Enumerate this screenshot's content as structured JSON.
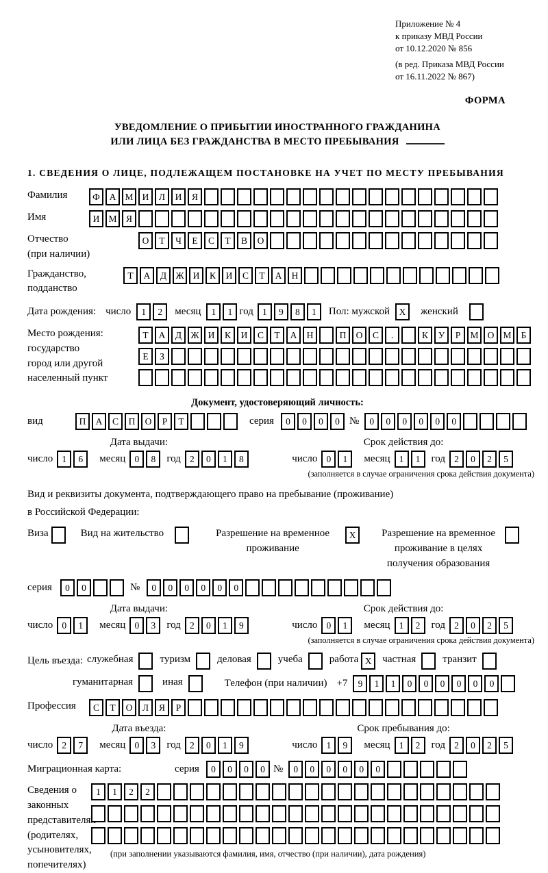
{
  "header": {
    "appendix": [
      "Приложение № 4",
      "к приказу МВД России",
      "от 10.12.2020 № 856"
    ],
    "edition": [
      "(в ред. Приказа МВД России",
      "от 16.11.2022 № 867)"
    ],
    "form_label": "ФОРМА"
  },
  "title": {
    "line1": "УВЕДОМЛЕНИЕ О ПРИБЫТИИ ИНОСТРАННОГО ГРАЖДАНИНА",
    "line2": "ИЛИ ЛИЦА БЕЗ ГРАЖДАНСТВА В МЕСТО ПРЕБЫВАНИЯ"
  },
  "section1_heading": "1. СВЕДЕНИЯ О ЛИЦЕ, ПОДЛЕЖАЩЕМ ПОСТАНОВКЕ НА УЧЕТ ПО МЕСТУ ПРЕБЫВАНИЯ",
  "date_labels": {
    "day": "число",
    "month": "месяц",
    "year": "год"
  },
  "surname": {
    "label": "Фамилия",
    "cells": 25,
    "value": "ФАМИЛИЯ"
  },
  "firstname": {
    "label": "Имя",
    "cells": 25,
    "value": "ИМЯ"
  },
  "patronymic": {
    "label1": "Отчество",
    "label2": "(при наличии)",
    "cells": 22,
    "value": "ОТЧЕСТВО"
  },
  "citizenship": {
    "label1": "Гражданство,",
    "label2": "подданство",
    "cells": 23,
    "value": "ТАДЖИКИСТАН"
  },
  "birth": {
    "label": "Дата рождения:",
    "day": {
      "cells": 2,
      "value": "12"
    },
    "month": {
      "cells": 2,
      "value": "11"
    },
    "year": {
      "cells": 4,
      "value": "1981"
    }
  },
  "gender": {
    "label": "Пол: мужской",
    "male_checked": "X",
    "female_label": "женский",
    "female_checked": ""
  },
  "birthplace": {
    "label_lines": [
      "Место рождения:",
      "государство",
      "город или другой",
      "населенный пункт"
    ],
    "row1": {
      "cells": 24,
      "value": "ТАДЖИКИСТАН ПОС. КУРМОМБ"
    },
    "row2": {
      "cells": 24,
      "value": "ЕЗ"
    },
    "row3": {
      "cells": 24,
      "value": ""
    }
  },
  "identity_doc": {
    "heading": "Документ, удостоверяющий личность:",
    "kind_label": "вид",
    "kind": {
      "cells": 10,
      "value": "ПАСПОРТ"
    },
    "seria_label": "серия",
    "seria": {
      "cells": 4,
      "value": "0000"
    },
    "number_label": "№",
    "number": {
      "cells": 10,
      "value": "000000"
    }
  },
  "passport_issue": {
    "heading": "Дата выдачи:",
    "day": {
      "cells": 2,
      "value": "16"
    },
    "month": {
      "cells": 2,
      "value": "08"
    },
    "year": {
      "cells": 4,
      "value": "2018"
    }
  },
  "passport_expiry": {
    "heading": "Срок действия до:",
    "day": {
      "cells": 2,
      "value": "01"
    },
    "month": {
      "cells": 2,
      "value": "11"
    },
    "year": {
      "cells": 4,
      "value": "2025"
    },
    "note": "(заполняется в случае ограничения срока действия документа)"
  },
  "residence": {
    "intro1": "Вид и реквизиты документа, подтверждающего право на пребывание (проживание)",
    "intro2": "в Российской Федерации:",
    "options": [
      {
        "label": "Виза",
        "checked": ""
      },
      {
        "label": "Вид на жительство",
        "checked": ""
      },
      {
        "label": "Разрешение на временное проживание",
        "checked": "X"
      },
      {
        "label": "Разрешение на временное проживание в целях получения образования",
        "checked": ""
      }
    ]
  },
  "rvp_doc": {
    "seria_label": "серия",
    "seria": {
      "cells": 4,
      "value": "00"
    },
    "number_label": "№",
    "number": {
      "cells": 15,
      "value": "000000"
    }
  },
  "rvp_issue": {
    "heading": "Дата выдачи:",
    "day": {
      "cells": 2,
      "value": "01"
    },
    "month": {
      "cells": 2,
      "value": "03"
    },
    "year": {
      "cells": 4,
      "value": "2019"
    }
  },
  "rvp_expiry": {
    "heading": "Срок действия до:",
    "day": {
      "cells": 2,
      "value": "01"
    },
    "month": {
      "cells": 2,
      "value": "12"
    },
    "year": {
      "cells": 4,
      "value": "2025"
    },
    "note": "(заполняется в случае ограничения срока действия документа)"
  },
  "purpose": {
    "label": "Цель въезда:",
    "row1": [
      {
        "label": "служебная",
        "checked": ""
      },
      {
        "label": "туризм",
        "checked": ""
      },
      {
        "label": "деловая",
        "checked": ""
      },
      {
        "label": "учеба",
        "checked": ""
      },
      {
        "label": "работа",
        "checked": "X"
      },
      {
        "label": "частная",
        "checked": ""
      },
      {
        "label": "транзит",
        "checked": ""
      }
    ],
    "row2": [
      {
        "label": "гуманитарная",
        "checked": ""
      },
      {
        "label": "иная",
        "checked": ""
      }
    ],
    "phone_label": "Телефон (при наличии)",
    "phone_prefix": "+7",
    "phone": {
      "cells": 10,
      "value": "911000000"
    }
  },
  "profession": {
    "label": "Профессия",
    "cells": 25,
    "value": "СТОЛЯР"
  },
  "entry_date": {
    "heading": "Дата въезда:",
    "day": {
      "cells": 2,
      "value": "27"
    },
    "month": {
      "cells": 2,
      "value": "03"
    },
    "year": {
      "cells": 4,
      "value": "2019"
    }
  },
  "stay_until": {
    "heading": "Срок пребывания до:",
    "day": {
      "cells": 2,
      "value": "19"
    },
    "month": {
      "cells": 2,
      "value": "12"
    },
    "year": {
      "cells": 4,
      "value": "2025"
    }
  },
  "migration_card": {
    "label": "Миграционная карта:",
    "seria_label": "серия",
    "seria": {
      "cells": 4,
      "value": "0000"
    },
    "number_label": "№",
    "number": {
      "cells": 11,
      "value": "000000"
    }
  },
  "legal_reps": {
    "label_lines": [
      "Сведения о",
      "законных",
      "представителях",
      "(родителях,",
      "усыновителях,",
      "попечителях)"
    ],
    "row1": {
      "cells": 25,
      "value": "1122"
    },
    "row2": {
      "cells": 25,
      "value": ""
    },
    "row3": {
      "cells": 25,
      "value": ""
    },
    "note": "(при заполнении указываются фамилия, имя, отчество (при наличии), дата рождения)"
  }
}
